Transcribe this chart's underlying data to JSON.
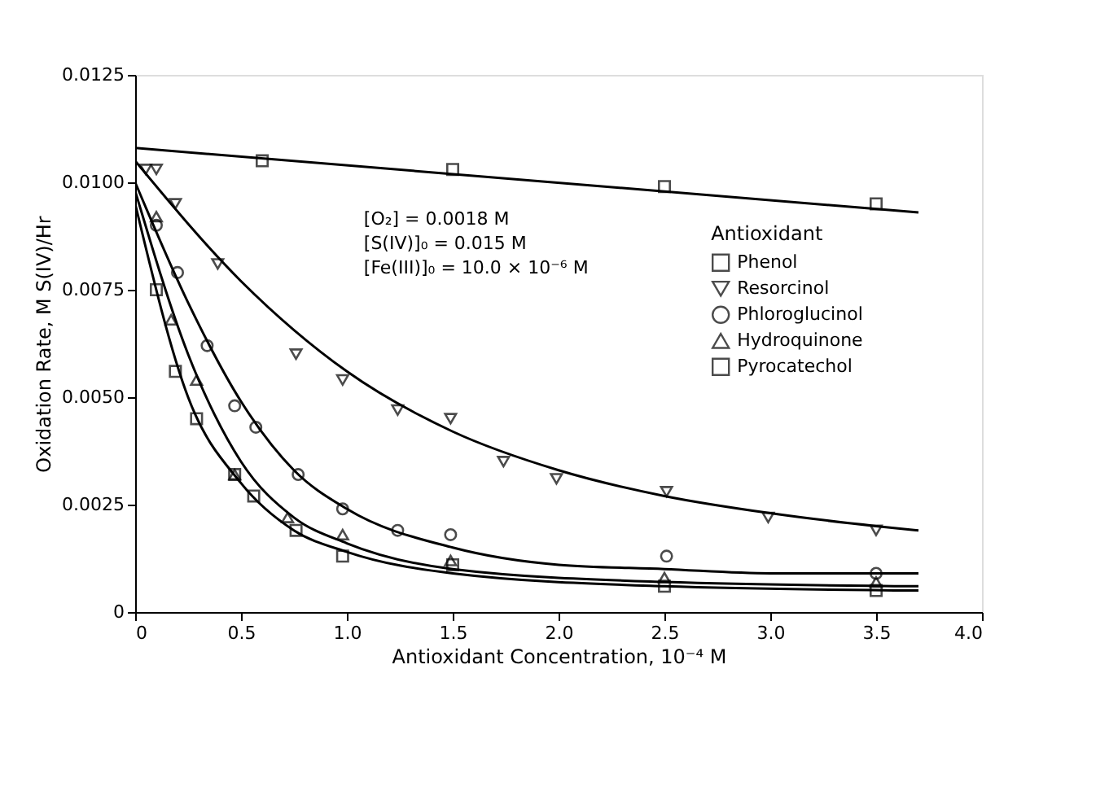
{
  "chart_data": {
    "type": "scatter",
    "xlabel": "Antioxidant Concentration, 10⁻⁴ M",
    "ylabel": "Oxidation Rate, M S(IV)/Hr",
    "legend_title": "Antioxidant",
    "legend": "right",
    "annotations": [
      "[O₂] = 0.0018 M",
      "[S(IV)]₀ = 0.015 M",
      "[Fe(III)]₀ = 10.0 × 10⁻⁶ M"
    ],
    "xlim": [
      0,
      4.0
    ],
    "xticks": [
      0,
      0.5,
      {
        "value": 1,
        "label": "1.0"
      },
      1.5,
      {
        "value": 2,
        "label": "2.0"
      },
      2.5,
      {
        "value": 3,
        "label": "3.0"
      },
      3.5,
      {
        "value": 4,
        "label": "4.0"
      }
    ],
    "ylim": [
      0,
      0.0125
    ],
    "yticks": [
      0,
      0.0025,
      {
        "value": 0.005,
        "label": "0.0050"
      },
      0.0075,
      {
        "value": 0.01,
        "label": "0.0100"
      },
      0.0125
    ],
    "grid": false,
    "series": [
      {
        "name": "Phenol",
        "color": "#000000",
        "marker": "square",
        "x": [
          0.6,
          1.5,
          2.5,
          3.5
        ],
        "values": [
          0.0105,
          0.0103,
          0.0099,
          0.0095
        ]
      },
      {
        "name": "Resorcinol",
        "color": "#000000",
        "marker": "triangle-down",
        "x": [
          0.05,
          0.1,
          0.19,
          0.39,
          0.76,
          0.98,
          1.24,
          1.49,
          1.74,
          1.99,
          2.51,
          2.99,
          3.5
        ],
        "values": [
          0.0103,
          0.0103,
          0.0095,
          0.0081,
          0.006,
          0.0054,
          0.0047,
          0.0045,
          0.0035,
          0.0031,
          0.0028,
          0.0022,
          0.0019
        ]
      },
      {
        "name": "Phloroglucinol",
        "color": "#000000",
        "marker": "circle",
        "x": [
          0.1,
          0.2,
          0.34,
          0.47,
          0.57,
          0.77,
          0.98,
          1.24,
          1.49,
          2.51,
          3.5
        ],
        "values": [
          0.009,
          0.0079,
          0.0062,
          0.0048,
          0.0043,
          0.0032,
          0.0024,
          0.0019,
          0.0018,
          0.0013,
          0.0009
        ]
      },
      {
        "name": "Hydroquinone",
        "color": "#000000",
        "marker": "triangle",
        "x": [
          0.1,
          0.17,
          0.29,
          0.47,
          0.72,
          0.98,
          1.49,
          2.5,
          3.5
        ],
        "values": [
          0.0092,
          0.0068,
          0.0054,
          0.0032,
          0.0022,
          0.0018,
          0.0012,
          0.0008,
          0.0007
        ]
      },
      {
        "name": "Pyrocatechol",
        "color": "#000000",
        "marker": "square",
        "x": [
          0.1,
          0.19,
          0.29,
          0.47,
          0.56,
          0.76,
          0.98,
          1.5,
          2.5,
          3.5
        ],
        "values": [
          0.0075,
          0.0056,
          0.0045,
          0.0032,
          0.0027,
          0.0019,
          0.0013,
          0.0011,
          0.0006,
          0.0005
        ]
      },
      {
        "type": "line",
        "color": "#000000",
        "x": [
          0,
          3.7
        ],
        "values": [
          0.0108,
          0.0093
        ]
      },
      {
        "type": "line",
        "color": "#000000",
        "x": [
          0,
          0.5,
          1.0,
          1.5,
          2.0,
          2.5,
          3.0,
          3.5,
          3.7
        ],
        "values": [
          0.0105,
          0.0077,
          0.0056,
          0.0042,
          0.0033,
          0.0027,
          0.0023,
          0.002,
          0.0019
        ]
      },
      {
        "type": "line",
        "color": "#000000",
        "x": [
          0,
          0.25,
          0.5,
          0.75,
          1.0,
          1.5,
          2.0,
          2.5,
          3.0,
          3.7
        ],
        "values": [
          0.01,
          0.0072,
          0.0049,
          0.0033,
          0.0024,
          0.0015,
          0.0011,
          0.001,
          0.0009,
          0.0009
        ]
      },
      {
        "type": "line",
        "color": "#000000",
        "x": [
          0,
          0.25,
          0.5,
          0.75,
          1.0,
          1.5,
          2.5,
          3.7
        ],
        "values": [
          0.0098,
          0.006,
          0.0035,
          0.0022,
          0.0016,
          0.001,
          0.0007,
          0.0006
        ]
      },
      {
        "type": "line",
        "color": "#000000",
        "x": [
          0,
          0.25,
          0.5,
          0.75,
          1.0,
          1.5,
          2.5,
          3.7
        ],
        "values": [
          0.0095,
          0.005,
          0.003,
          0.0019,
          0.0014,
          0.0009,
          0.0006,
          0.0005
        ]
      }
    ]
  }
}
